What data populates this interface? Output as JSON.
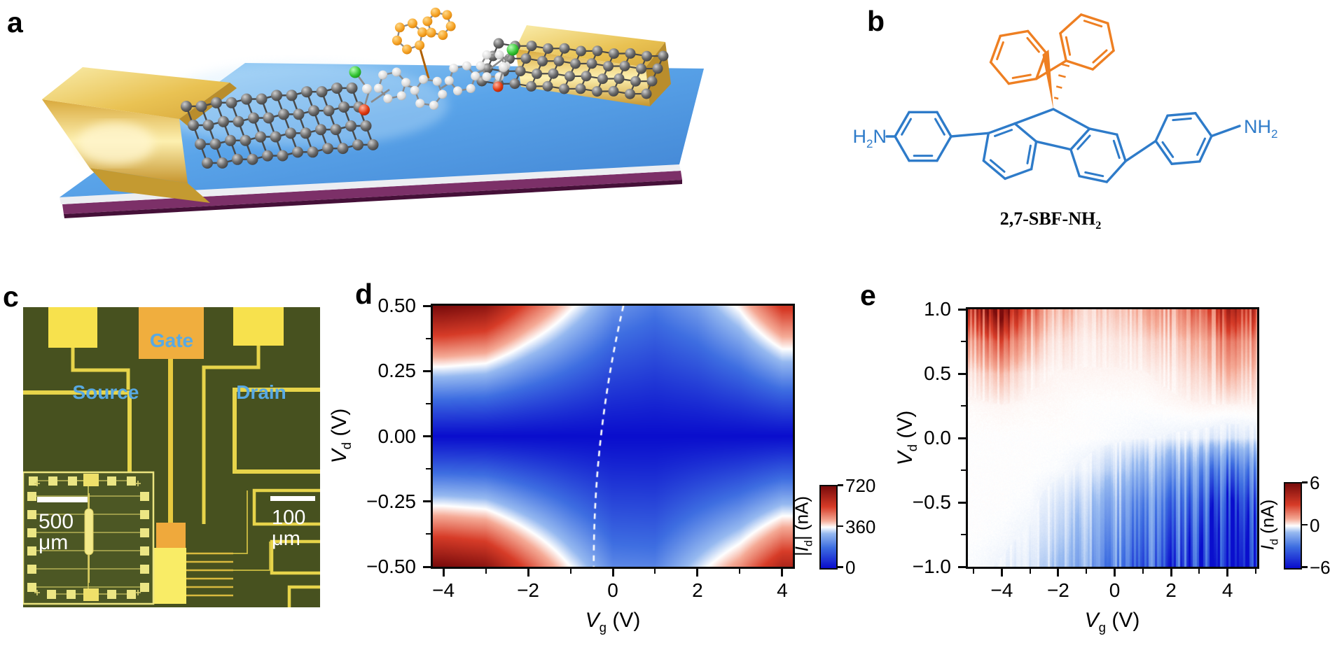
{
  "figure": {
    "background": "#ffffff",
    "panels": {
      "a": {
        "label": "a",
        "description": "3D illustration of a graphene-molecule-graphene single-molecule transistor: gold source/drain electrodes on blue substrate bridged by graphene sheets and one SBF molecule"
      },
      "b": {
        "label": "b",
        "caption_main": "2,7-SBF-NH",
        "caption_sub": "2",
        "amine_left": {
          "pre": "H",
          "sub": "2",
          "post": "N"
        },
        "amine_right": {
          "pre": "NH",
          "sub": "2"
        },
        "colors": {
          "blue": "#2e7bc9",
          "orange": "#ee7f22"
        }
      },
      "c": {
        "label": "c",
        "labels": {
          "gate": "Gate",
          "source": "Source",
          "drain": "Drain"
        },
        "scalebar_inset": {
          "value": "500",
          "unit": "μm"
        },
        "scalebar_main": {
          "value": "100",
          "unit": "μm"
        },
        "label_color": "#58a9e3"
      },
      "d": {
        "label": "d",
        "xlabel": {
          "var": "V",
          "sub": "g",
          "unit": " (V)"
        },
        "ylabel": {
          "var": "V",
          "sub": "d",
          "unit": " (V)"
        },
        "colorbar_label": {
          "pre": "|",
          "var": "I",
          "sub": "d",
          "post": "| (nA)"
        }
      },
      "e": {
        "label": "e",
        "xlabel": {
          "var": "V",
          "sub": "g",
          "unit": " (V)"
        },
        "ylabel": {
          "var": "V",
          "sub": "d",
          "unit": " (V)"
        },
        "colorbar_label": {
          "pre": "",
          "var": "I",
          "sub": "d",
          "post": " (nA)"
        }
      }
    }
  },
  "chart_data": [
    {
      "id": "d",
      "type": "heatmap",
      "xlabel": "Vg (V)",
      "ylabel": "Vd (V)",
      "x_range": [
        -4.25,
        4.25
      ],
      "y_range": [
        -0.5,
        0.5
      ],
      "x_major": [
        -4,
        -2,
        0,
        2,
        4
      ],
      "x_major_labels": [
        "−4",
        "−2",
        "0",
        "2",
        "4"
      ],
      "x_minor": [
        -3,
        -1,
        1,
        3
      ],
      "y_major": [
        0.5,
        0.25,
        0,
        -0.25,
        -0.5
      ],
      "y_major_labels": [
        "0.50",
        "0.25",
        "0.00",
        "−0.25",
        "−0.50"
      ],
      "y_minor": [
        0.375,
        0.125,
        -0.125,
        -0.375
      ],
      "colorbar": {
        "label": "|Id| (nA)",
        "min": 0,
        "max": 720,
        "ticks": [
          720,
          360,
          0
        ],
        "tick_labels": [
          "720",
          "360",
          "0"
        ]
      },
      "model": {
        "vmax": 720,
        "vd_gamma": 1.1,
        "vg_samples": [
          -4,
          -3,
          -2,
          -1,
          0,
          1,
          2,
          3,
          4
        ],
        "s_top": [
          1.0,
          0.95,
          0.72,
          0.52,
          0.34,
          0.28,
          0.36,
          0.52,
          0.78
        ],
        "s_bottom": [
          1.0,
          0.95,
          0.72,
          0.5,
          0.31,
          0.3,
          0.46,
          0.62,
          0.86
        ]
      },
      "dashed_line": {
        "vg_top": 0.25,
        "vg_mid": -0.28,
        "vg_bottom": -0.45,
        "style": "white-dashed"
      }
    },
    {
      "id": "e",
      "type": "heatmap",
      "xlabel": "Vg (V)",
      "ylabel": "Vd (V)",
      "x_range": [
        -5.2,
        5.05
      ],
      "y_range": [
        -1.0,
        1.0
      ],
      "x_major": [
        -4,
        -2,
        0,
        2,
        4
      ],
      "x_major_labels": [
        "−4",
        "−2",
        "0",
        "2",
        "4"
      ],
      "x_minor": [
        -5,
        -3,
        -1,
        1,
        3,
        5
      ],
      "y_major": [
        1.0,
        0.5,
        0.0,
        -0.5,
        -1.0
      ],
      "y_major_labels": [
        "1.0",
        "0.5",
        "0.0",
        "−0.5",
        "−1.0"
      ],
      "y_minor": [
        0.75,
        0.25,
        -0.25,
        -0.75
      ],
      "colorbar": {
        "label": "Id (nA)",
        "min": -6,
        "max": 6,
        "ticks": [
          6,
          0,
          -6
        ],
        "tick_labels": [
          "6",
          "0",
          "−6"
        ]
      },
      "grid": {
        "vg": [
          -5,
          -4,
          -3,
          -2,
          -1,
          0,
          1,
          2,
          3,
          4,
          5
        ],
        "vd": [
          1.0,
          0.75,
          0.5,
          0.25,
          0,
          -0.25,
          -0.5,
          -0.75,
          -1.0
        ],
        "values": [
          [
            3.5,
            5.0,
            2.0,
            0.8,
            0.5,
            0.5,
            0.8,
            1.2,
            2.0,
            3.5,
            3.0
          ],
          [
            1.2,
            2.0,
            0.8,
            0.3,
            0.2,
            0.2,
            0.3,
            0.5,
            0.8,
            1.5,
            1.2
          ],
          [
            0.3,
            0.6,
            0.2,
            0.1,
            0.1,
            0.1,
            0.1,
            0.2,
            0.4,
            0.7,
            0.5
          ],
          [
            0.05,
            0.1,
            0.05,
            0.05,
            0,
            0,
            0,
            0.05,
            0.1,
            0.1,
            0.1
          ],
          [
            0,
            0,
            0,
            0,
            0,
            -0.05,
            -0.1,
            -0.15,
            -0.2,
            -0.3,
            -0.25
          ],
          [
            0,
            0,
            0,
            -0.05,
            -0.2,
            -0.5,
            -0.9,
            -1.4,
            -2.0,
            -2.6,
            -2.2
          ],
          [
            0,
            0,
            -0.05,
            -0.3,
            -0.7,
            -1.2,
            -1.9,
            -2.6,
            -3.4,
            -4.4,
            -3.8
          ],
          [
            0,
            -0.05,
            -0.15,
            -0.5,
            -1.1,
            -1.7,
            -2.5,
            -3.4,
            -4.4,
            -5.4,
            -4.8
          ],
          [
            -0.05,
            -0.15,
            -0.3,
            -0.8,
            -1.5,
            -2.2,
            -3.1,
            -4.1,
            -5.2,
            -6.0,
            -5.5
          ]
        ]
      },
      "texture": "vertical-streaks"
    }
  ],
  "colormap": {
    "stops": [
      [
        0,
        10,
        14,
        205
      ],
      [
        0.25,
        62,
        110,
        225
      ],
      [
        0.42,
        150,
        185,
        240
      ],
      [
        0.5,
        255,
        255,
        255
      ],
      [
        0.58,
        245,
        170,
        150
      ],
      [
        0.75,
        215,
        60,
        40
      ],
      [
        1,
        122,
        12,
        12
      ]
    ]
  }
}
